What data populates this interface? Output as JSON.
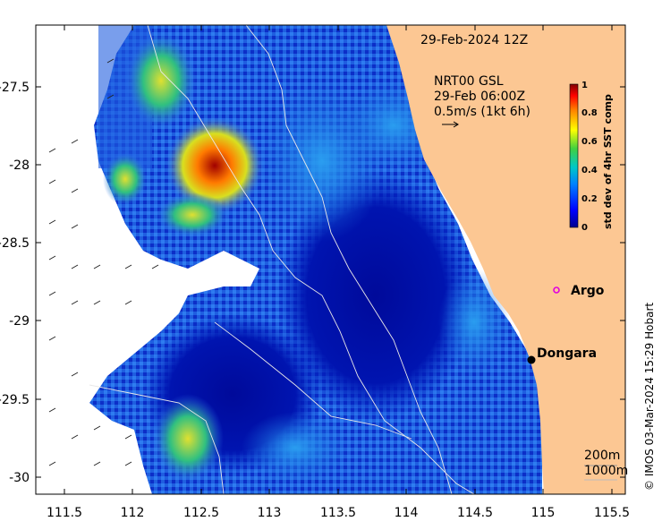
{
  "map": {
    "date_label": "29-Feb-2024 12Z",
    "current_source": "NRT00 GSL",
    "current_time": "29-Feb 06:00Z",
    "current_scale": "0.5m/s (1kt 6h)",
    "x_ticks": [
      "111.5",
      "112",
      "112.5",
      "113",
      "113.5",
      "114",
      "114.5",
      "115",
      "115.5"
    ],
    "y_ticks": [
      "-27.5",
      "-28",
      "-28.5",
      "-29",
      "-29.5",
      "-30"
    ],
    "x_range": [
      111.45,
      115.7
    ],
    "y_range": [
      -30.1,
      -27.1
    ],
    "places": [
      {
        "name": "Argo",
        "lon": 115.1,
        "lat": -28.85,
        "marker": "circle"
      },
      {
        "name": "Dongara",
        "lon": 114.93,
        "lat": -29.25,
        "marker": "dot"
      }
    ],
    "contours": [
      "200m",
      "1000m"
    ],
    "colorbar": {
      "title": "std dev of 4hr SST comp",
      "ticks": [
        "0",
        "0.2",
        "0.4",
        "0.6",
        "0.8",
        "1"
      ],
      "range": [
        0,
        1
      ]
    },
    "credit": "© IMOS 03-Mar-2024 15:29 Hobart",
    "colors": {
      "land": "#FCC793",
      "low": "#00008F",
      "high": "#800000",
      "ocean_background": "#1b4fd1"
    }
  }
}
